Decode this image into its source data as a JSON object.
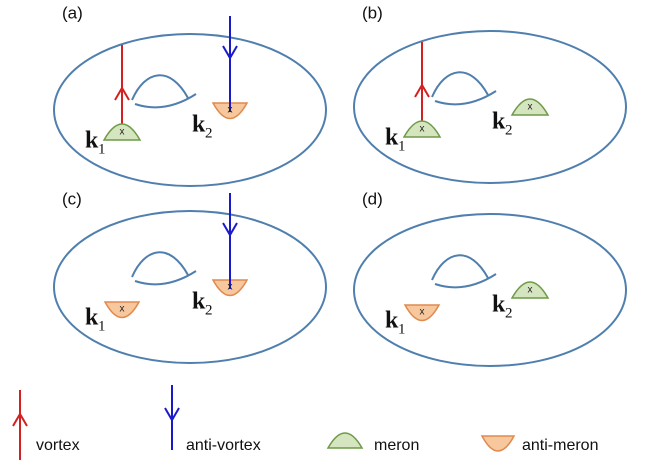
{
  "panels": [
    {
      "label": "(a)",
      "points": [
        {
          "symbol": "k",
          "subscript": "1",
          "mark": "x",
          "kind": "meron",
          "arrow": "vortex"
        },
        {
          "symbol": "k",
          "subscript": "2",
          "mark": "x",
          "kind": "anti-meron",
          "arrow": "anti-vortex"
        }
      ]
    },
    {
      "label": "(b)",
      "points": [
        {
          "symbol": "k",
          "subscript": "1",
          "mark": "x",
          "kind": "meron",
          "arrow": "vortex"
        },
        {
          "symbol": "k",
          "subscript": "2",
          "mark": "x",
          "kind": "meron"
        }
      ]
    },
    {
      "label": "(c)",
      "points": [
        {
          "symbol": "k",
          "subscript": "1",
          "mark": "x",
          "kind": "anti-meron"
        },
        {
          "symbol": "k",
          "subscript": "2",
          "mark": "x",
          "kind": "anti-meron",
          "arrow": "anti-vortex"
        }
      ]
    },
    {
      "label": "(d)",
      "points": [
        {
          "symbol": "k",
          "subscript": "1",
          "mark": "x",
          "kind": "anti-meron"
        },
        {
          "symbol": "k",
          "subscript": "2",
          "mark": "x",
          "kind": "meron"
        }
      ]
    }
  ],
  "legend": {
    "vortex": "vortex",
    "anti_vortex": "anti-vortex",
    "meron": "meron",
    "anti_meron": "anti-meron"
  }
}
